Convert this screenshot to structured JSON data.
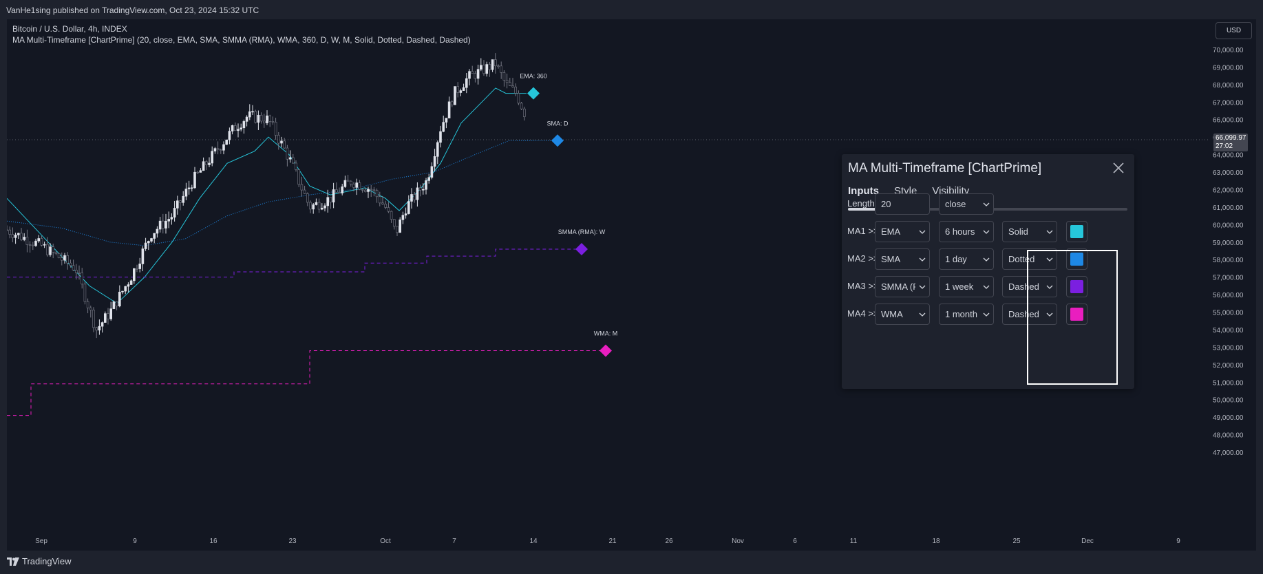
{
  "header": {
    "published": "VanHe1sing published on TradingView.com, Oct 23, 2024 15:32 UTC"
  },
  "legend": {
    "symbol": "Bitcoin / U.S. Dollar, 4h, INDEX",
    "indicator": "MA Multi-Timeframe [ChartPrime] (20, close, EMA, SMA, SMMA (RMA), WMA, 360, D, W, M, Solid, Dotted, Dashed, Dashed)"
  },
  "currency_button": "USD",
  "current_price": {
    "value": "66,099.97",
    "countdown": "27:02"
  },
  "chart_data": {
    "type": "candlestick",
    "ylim": [
      46500,
      70800
    ],
    "price_ticks": [
      "70,000.00",
      "69,000.00",
      "68,000.00",
      "67,000.00",
      "66,000.00",
      "65,000.00",
      "64,000.00",
      "63,000.00",
      "62,000.00",
      "61,000.00",
      "60,000.00",
      "59,000.00",
      "58,000.00",
      "57,000.00",
      "56,000.00",
      "55,000.00",
      "54,000.00",
      "53,000.00",
      "52,000.00",
      "51,000.00",
      "50,000.00",
      "49,000.00",
      "48,000.00",
      "47,000.00"
    ],
    "time_ticks": [
      "Sep",
      "9",
      "16",
      "23",
      "Oct",
      "7",
      "14",
      "21",
      "26",
      "Nov",
      "6",
      "11",
      "18",
      "25",
      "Dec",
      "9"
    ],
    "close_path": [
      [
        0,
        59700
      ],
      [
        5,
        58800
      ],
      [
        10,
        57500
      ],
      [
        13,
        54000
      ],
      [
        15,
        55000
      ],
      [
        18,
        57000
      ],
      [
        21,
        59500
      ],
      [
        24,
        60500
      ],
      [
        27,
        62500
      ],
      [
        30,
        64000
      ],
      [
        33,
        65500
      ],
      [
        35,
        66200
      ],
      [
        38,
        66000
      ],
      [
        41,
        63800
      ],
      [
        44,
        61000
      ],
      [
        47,
        61500
      ],
      [
        50,
        62500
      ],
      [
        53,
        62000
      ],
      [
        55,
        61000
      ],
      [
        56.5,
        59500
      ],
      [
        58,
        61000
      ],
      [
        61,
        62500
      ],
      [
        63,
        65500
      ],
      [
        65,
        67500
      ],
      [
        67,
        68400
      ],
      [
        69,
        68800
      ],
      [
        71,
        69200
      ],
      [
        72.5,
        68000
      ],
      [
        74,
        67500
      ],
      [
        75.5,
        66100
      ]
    ],
    "ma_lines": [
      {
        "label": "EMA: 360",
        "color": "#26c6da",
        "style": "solid",
        "points": [
          [
            0,
            61500
          ],
          [
            6,
            59000
          ],
          [
            12,
            56500
          ],
          [
            16,
            55500
          ],
          [
            20,
            57000
          ],
          [
            24,
            59000
          ],
          [
            28,
            61500
          ],
          [
            32,
            63500
          ],
          [
            36,
            64200
          ],
          [
            38,
            65000
          ],
          [
            41,
            64000
          ],
          [
            44,
            62200
          ],
          [
            47,
            61700
          ],
          [
            52,
            62100
          ],
          [
            55,
            61500
          ],
          [
            57,
            60800
          ],
          [
            60,
            62000
          ],
          [
            63,
            63500
          ],
          [
            66,
            65800
          ],
          [
            69,
            67000
          ],
          [
            71,
            67800
          ],
          [
            72.5,
            67500
          ],
          [
            75.5,
            67500
          ]
        ],
        "marker_x": 76.5
      },
      {
        "label": "SMA: D",
        "color": "#1e88e5",
        "style": "dotted",
        "points": [
          [
            0,
            60200
          ],
          [
            8,
            59800
          ],
          [
            15,
            59000
          ],
          [
            20,
            58800
          ],
          [
            26,
            59200
          ],
          [
            32,
            60500
          ],
          [
            38,
            61300
          ],
          [
            44,
            61700
          ],
          [
            50,
            62000
          ],
          [
            56,
            62600
          ],
          [
            62,
            63000
          ],
          [
            68,
            64000
          ],
          [
            73,
            64800
          ],
          [
            80,
            64800
          ]
        ],
        "marker_x": 80
      },
      {
        "label": "SMMA (RMA): W",
        "color": "#7b1fe0",
        "style": "dashed",
        "points": [
          [
            0,
            57000
          ],
          [
            33,
            57000
          ],
          [
            33,
            57300
          ],
          [
            52,
            57300
          ],
          [
            52,
            57800
          ],
          [
            61,
            57800
          ],
          [
            61,
            58200
          ],
          [
            71,
            58200
          ],
          [
            71,
            58600
          ],
          [
            83.5,
            58600
          ]
        ],
        "marker_x": 83.5
      },
      {
        "label": "WMA: M",
        "color": "#e91ebf",
        "style": "dashed",
        "points": [
          [
            0,
            49100
          ],
          [
            3.5,
            49100
          ],
          [
            3.5,
            50900
          ],
          [
            44,
            50900
          ],
          [
            44,
            52800
          ],
          [
            87,
            52800
          ]
        ],
        "marker_x": 87
      }
    ]
  },
  "dialog": {
    "title": "MA Multi-Timeframe [ChartPrime]",
    "tabs": [
      "Inputs",
      "Style",
      "Visibility"
    ],
    "active_tab": "Inputs",
    "length_label": "Length",
    "length_value": "20",
    "source_value": "close",
    "rows": [
      {
        "label": "MA1 >>",
        "type": "EMA",
        "timeframe": "6 hours",
        "style": "Solid",
        "color": "#26c6da"
      },
      {
        "label": "MA2 >>",
        "type": "SMA",
        "timeframe": "1 day",
        "style": "Dotted",
        "color": "#1e88e5"
      },
      {
        "label": "MA3 >>",
        "type": "SMMA (R...",
        "timeframe": "1 week",
        "style": "Dashed",
        "color": "#7b1fe0"
      },
      {
        "label": "MA4 >>",
        "type": "WMA",
        "timeframe": "1 month",
        "style": "Dashed",
        "color": "#e91ebf"
      }
    ]
  },
  "footer": {
    "brand": "TradingView"
  },
  "colors": {
    "background": "#131722",
    "panel": "#1e222d",
    "border": "#434651",
    "text": "#d1d4dc"
  }
}
